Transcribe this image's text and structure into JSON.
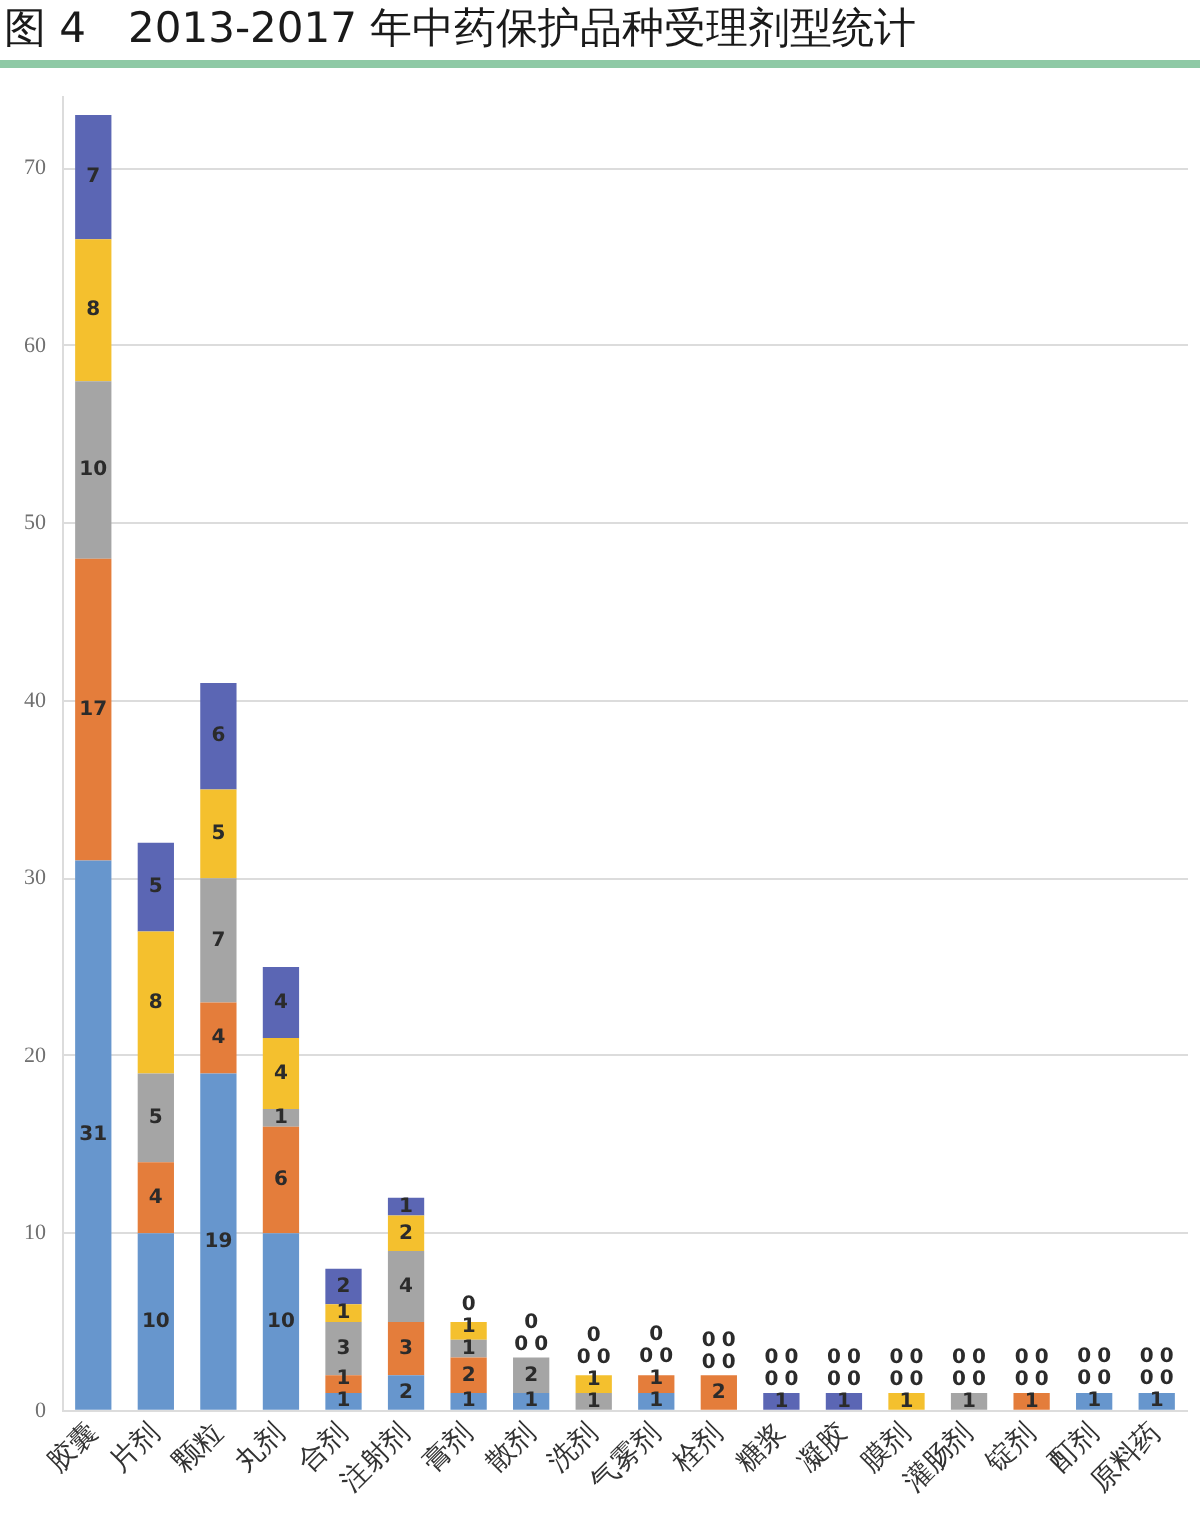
{
  "chart_data": {
    "type": "bar",
    "title": "图 4　2013-2017 年中药保护品种受理剂型统计",
    "categories": [
      "胶囊",
      "片剂",
      "颗粒",
      "丸剂",
      "合剂",
      "注射剂",
      "膏剂",
      "散剂",
      "洗剂",
      "气雾剂",
      "栓剂",
      "糖浆",
      "凝胶",
      "膜剂",
      "灌肠剂",
      "锭剂",
      "酊剂",
      "原料药"
    ],
    "series": [
      {
        "color": "#6796cd",
        "values": [
          31,
          10,
          19,
          10,
          1,
          2,
          1,
          1,
          0,
          1,
          0,
          0,
          0,
          0,
          0,
          0,
          1,
          1
        ]
      },
      {
        "color": "#e47d3b",
        "values": [
          17,
          4,
          4,
          6,
          1,
          3,
          2,
          0,
          0,
          1,
          2,
          0,
          0,
          0,
          0,
          1,
          0,
          0
        ]
      },
      {
        "color": "#a5a5a5",
        "values": [
          10,
          5,
          7,
          1,
          3,
          4,
          1,
          2,
          1,
          0,
          0,
          0,
          0,
          0,
          1,
          0,
          0,
          0
        ]
      },
      {
        "color": "#f4c02e",
        "values": [
          8,
          8,
          5,
          4,
          1,
          2,
          1,
          0,
          1,
          0,
          0,
          0,
          0,
          1,
          0,
          0,
          0,
          0
        ]
      },
      {
        "color": "#5b66b4",
        "values": [
          7,
          5,
          6,
          4,
          2,
          1,
          0,
          0,
          0,
          0,
          0,
          1,
          1,
          0,
          0,
          0,
          0,
          0
        ]
      }
    ],
    "stacked": true,
    "ylim": [
      0,
      74
    ],
    "yticks": [
      0,
      10,
      20,
      30,
      40,
      50,
      60,
      70
    ],
    "grid": "y",
    "data_labels": true
  }
}
